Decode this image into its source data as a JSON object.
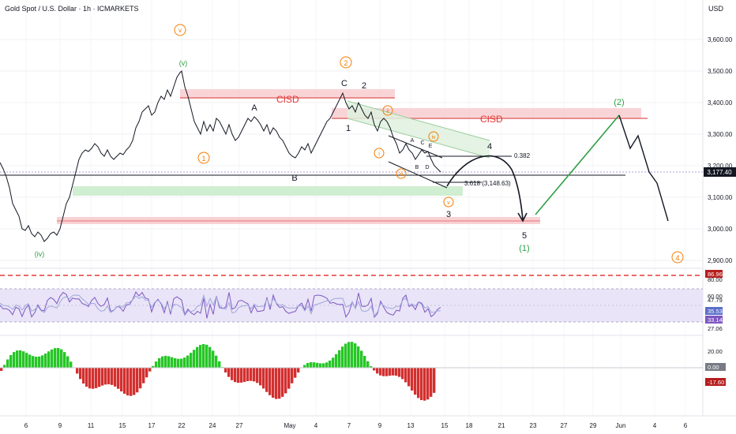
{
  "header": {
    "title": "Gold Spot / U.S. Dollar · 1h · ICMARKETS",
    "currency": "USD"
  },
  "colors": {
    "grid": "#eef0f3",
    "axis_text": "#131722",
    "price_line": "#131722",
    "red_zone": "#f7c6c9",
    "red_line": "#e57373",
    "green_zone": "#c8ebc9",
    "green_channel": "#dff1df",
    "green_wave": "#2ea043",
    "orange": "#f57c00",
    "rsi_band": "#e9e4f7",
    "rsi_line": "#7e57c2",
    "rsi_signal": "#9fa8da",
    "macd_up": "#26c626",
    "macd_down": "#d32f2f",
    "badge_dark": "#131722",
    "badge_red": "#b71c1c",
    "badge_purple": "#5b6ec9",
    "badge_gray": "#787b86"
  },
  "chart_data": {
    "type": "line",
    "series": [
      {
        "values": [
          [
            0,
            3210
          ],
          [
            4,
            3190
          ],
          [
            8,
            3165
          ],
          [
            12,
            3130
          ],
          [
            16,
            3080
          ],
          [
            20,
            3060
          ],
          [
            24,
            3040
          ],
          [
            28,
            3000
          ],
          [
            32,
            2995
          ],
          [
            36,
            3010
          ],
          [
            40,
            2985
          ],
          [
            44,
            2975
          ],
          [
            48,
            2990
          ],
          [
            52,
            2980
          ],
          [
            56,
            2960
          ],
          [
            60,
            2970
          ],
          [
            64,
            2985
          ],
          [
            68,
            2990
          ],
          [
            72,
            2980
          ],
          [
            76,
            3000
          ],
          [
            80,
            3040
          ],
          [
            84,
            3080
          ],
          [
            88,
            3100
          ],
          [
            92,
            3140
          ],
          [
            96,
            3180
          ],
          [
            100,
            3220
          ],
          [
            104,
            3240
          ],
          [
            108,
            3250
          ],
          [
            112,
            3245
          ],
          [
            116,
            3255
          ],
          [
            120,
            3270
          ],
          [
            124,
            3260
          ],
          [
            128,
            3240
          ],
          [
            132,
            3230
          ],
          [
            136,
            3250
          ],
          [
            140,
            3230
          ],
          [
            144,
            3220
          ],
          [
            148,
            3230
          ],
          [
            152,
            3240
          ],
          [
            156,
            3235
          ],
          [
            160,
            3250
          ],
          [
            164,
            3260
          ],
          [
            168,
            3280
          ],
          [
            172,
            3320
          ],
          [
            176,
            3340
          ],
          [
            180,
            3370
          ],
          [
            184,
            3380
          ],
          [
            188,
            3390
          ],
          [
            192,
            3360
          ],
          [
            196,
            3370
          ],
          [
            200,
            3400
          ],
          [
            204,
            3420
          ],
          [
            208,
            3410
          ],
          [
            212,
            3440
          ],
          [
            216,
            3420
          ],
          [
            220,
            3450
          ],
          [
            224,
            3480
          ],
          [
            228,
            3495
          ],
          [
            230,
            3500
          ],
          [
            234,
            3450
          ],
          [
            238,
            3420
          ],
          [
            242,
            3380
          ],
          [
            246,
            3340
          ],
          [
            250,
            3320
          ],
          [
            254,
            3300
          ],
          [
            258,
            3340
          ],
          [
            262,
            3310
          ],
          [
            266,
            3330
          ],
          [
            270,
            3310
          ],
          [
            274,
            3350
          ],
          [
            278,
            3340
          ],
          [
            282,
            3320
          ],
          [
            286,
            3300
          ],
          [
            290,
            3330
          ],
          [
            294,
            3300
          ],
          [
            298,
            3280
          ],
          [
            302,
            3290
          ],
          [
            306,
            3310
          ],
          [
            310,
            3330
          ],
          [
            314,
            3350
          ],
          [
            318,
            3340
          ],
          [
            322,
            3355
          ],
          [
            326,
            3345
          ],
          [
            330,
            3330
          ],
          [
            334,
            3310
          ],
          [
            338,
            3330
          ],
          [
            342,
            3300
          ],
          [
            346,
            3320
          ],
          [
            350,
            3310
          ],
          [
            354,
            3290
          ],
          [
            358,
            3280
          ],
          [
            362,
            3260
          ],
          [
            366,
            3240
          ],
          [
            370,
            3230
          ],
          [
            374,
            3225
          ],
          [
            378,
            3240
          ],
          [
            382,
            3260
          ],
          [
            386,
            3250
          ],
          [
            390,
            3270
          ],
          [
            394,
            3240
          ],
          [
            398,
            3260
          ],
          [
            402,
            3280
          ],
          [
            406,
            3300
          ],
          [
            410,
            3320
          ],
          [
            414,
            3340
          ],
          [
            418,
            3350
          ],
          [
            422,
            3370
          ],
          [
            426,
            3390
          ],
          [
            430,
            3410
          ],
          [
            434,
            3430
          ],
          [
            438,
            3400
          ],
          [
            442,
            3380
          ],
          [
            446,
            3390
          ],
          [
            450,
            3370
          ],
          [
            454,
            3400
          ],
          [
            458,
            3380
          ],
          [
            462,
            3360
          ],
          [
            466,
            3350
          ],
          [
            470,
            3370
          ],
          [
            474,
            3330
          ],
          [
            478,
            3310
          ],
          [
            482,
            3340
          ],
          [
            486,
            3350
          ],
          [
            490,
            3340
          ],
          [
            494,
            3320
          ],
          [
            498,
            3290
          ],
          [
            502,
            3270
          ],
          [
            506,
            3240
          ],
          [
            510,
            3250
          ],
          [
            514,
            3270
          ],
          [
            518,
            3250
          ],
          [
            522,
            3240
          ],
          [
            526,
            3220
          ],
          [
            530,
            3235
          ],
          [
            534,
            3250
          ],
          [
            538,
            3240
          ],
          [
            542,
            3245
          ],
          [
            546,
            3220
          ],
          [
            550,
            3200
          ],
          [
            554,
            3190
          ],
          [
            558,
            3180
          ]
        ]
      }
    ],
    "x_ticks": [
      "6",
      "9",
      "11",
      "15",
      "17",
      "22",
      "24",
      "27",
      "May",
      "4",
      "7",
      "9",
      "13",
      "15",
      "18",
      "21",
      "23",
      "27",
      "29",
      "Jun",
      "4",
      "6"
    ],
    "y_ticks": [
      "3,600.00",
      "3,500.00",
      "3,400.00",
      "3,300.00",
      "3,200.00",
      "3,100.00",
      "3,000.00",
      "2,900.00"
    ],
    "ylim": [
      2860,
      3700
    ],
    "current_price": "3,177.40",
    "wave_labels": {
      "orange_circled": [
        "v",
        "2",
        "ii",
        "iv",
        "1",
        "i",
        "iii",
        "v",
        "4"
      ],
      "green_paren": [
        "(v)",
        "(iv)",
        "(2)",
        "(1)"
      ],
      "black": [
        "C",
        "2",
        "A",
        "1",
        "B",
        "4",
        "3",
        "5",
        "A",
        "C",
        "E",
        "B",
        "D"
      ]
    },
    "zones": [
      "CISD",
      "CISD"
    ],
    "fib_labels": [
      "0.382",
      "3.618 (3,148.63)"
    ],
    "rsi": {
      "ticks": [
        "86.96",
        "80.00",
        "60.00",
        "47.79",
        "35.53",
        "33.14",
        "27.06"
      ],
      "highlight": [
        "86.96",
        "47.79",
        "35.53",
        "33.14",
        "27.06"
      ]
    },
    "macd": {
      "ticks": [
        "20.00",
        "0.00",
        "-17.60"
      ],
      "highlight": [
        "0.00",
        "-17.60"
      ]
    }
  }
}
